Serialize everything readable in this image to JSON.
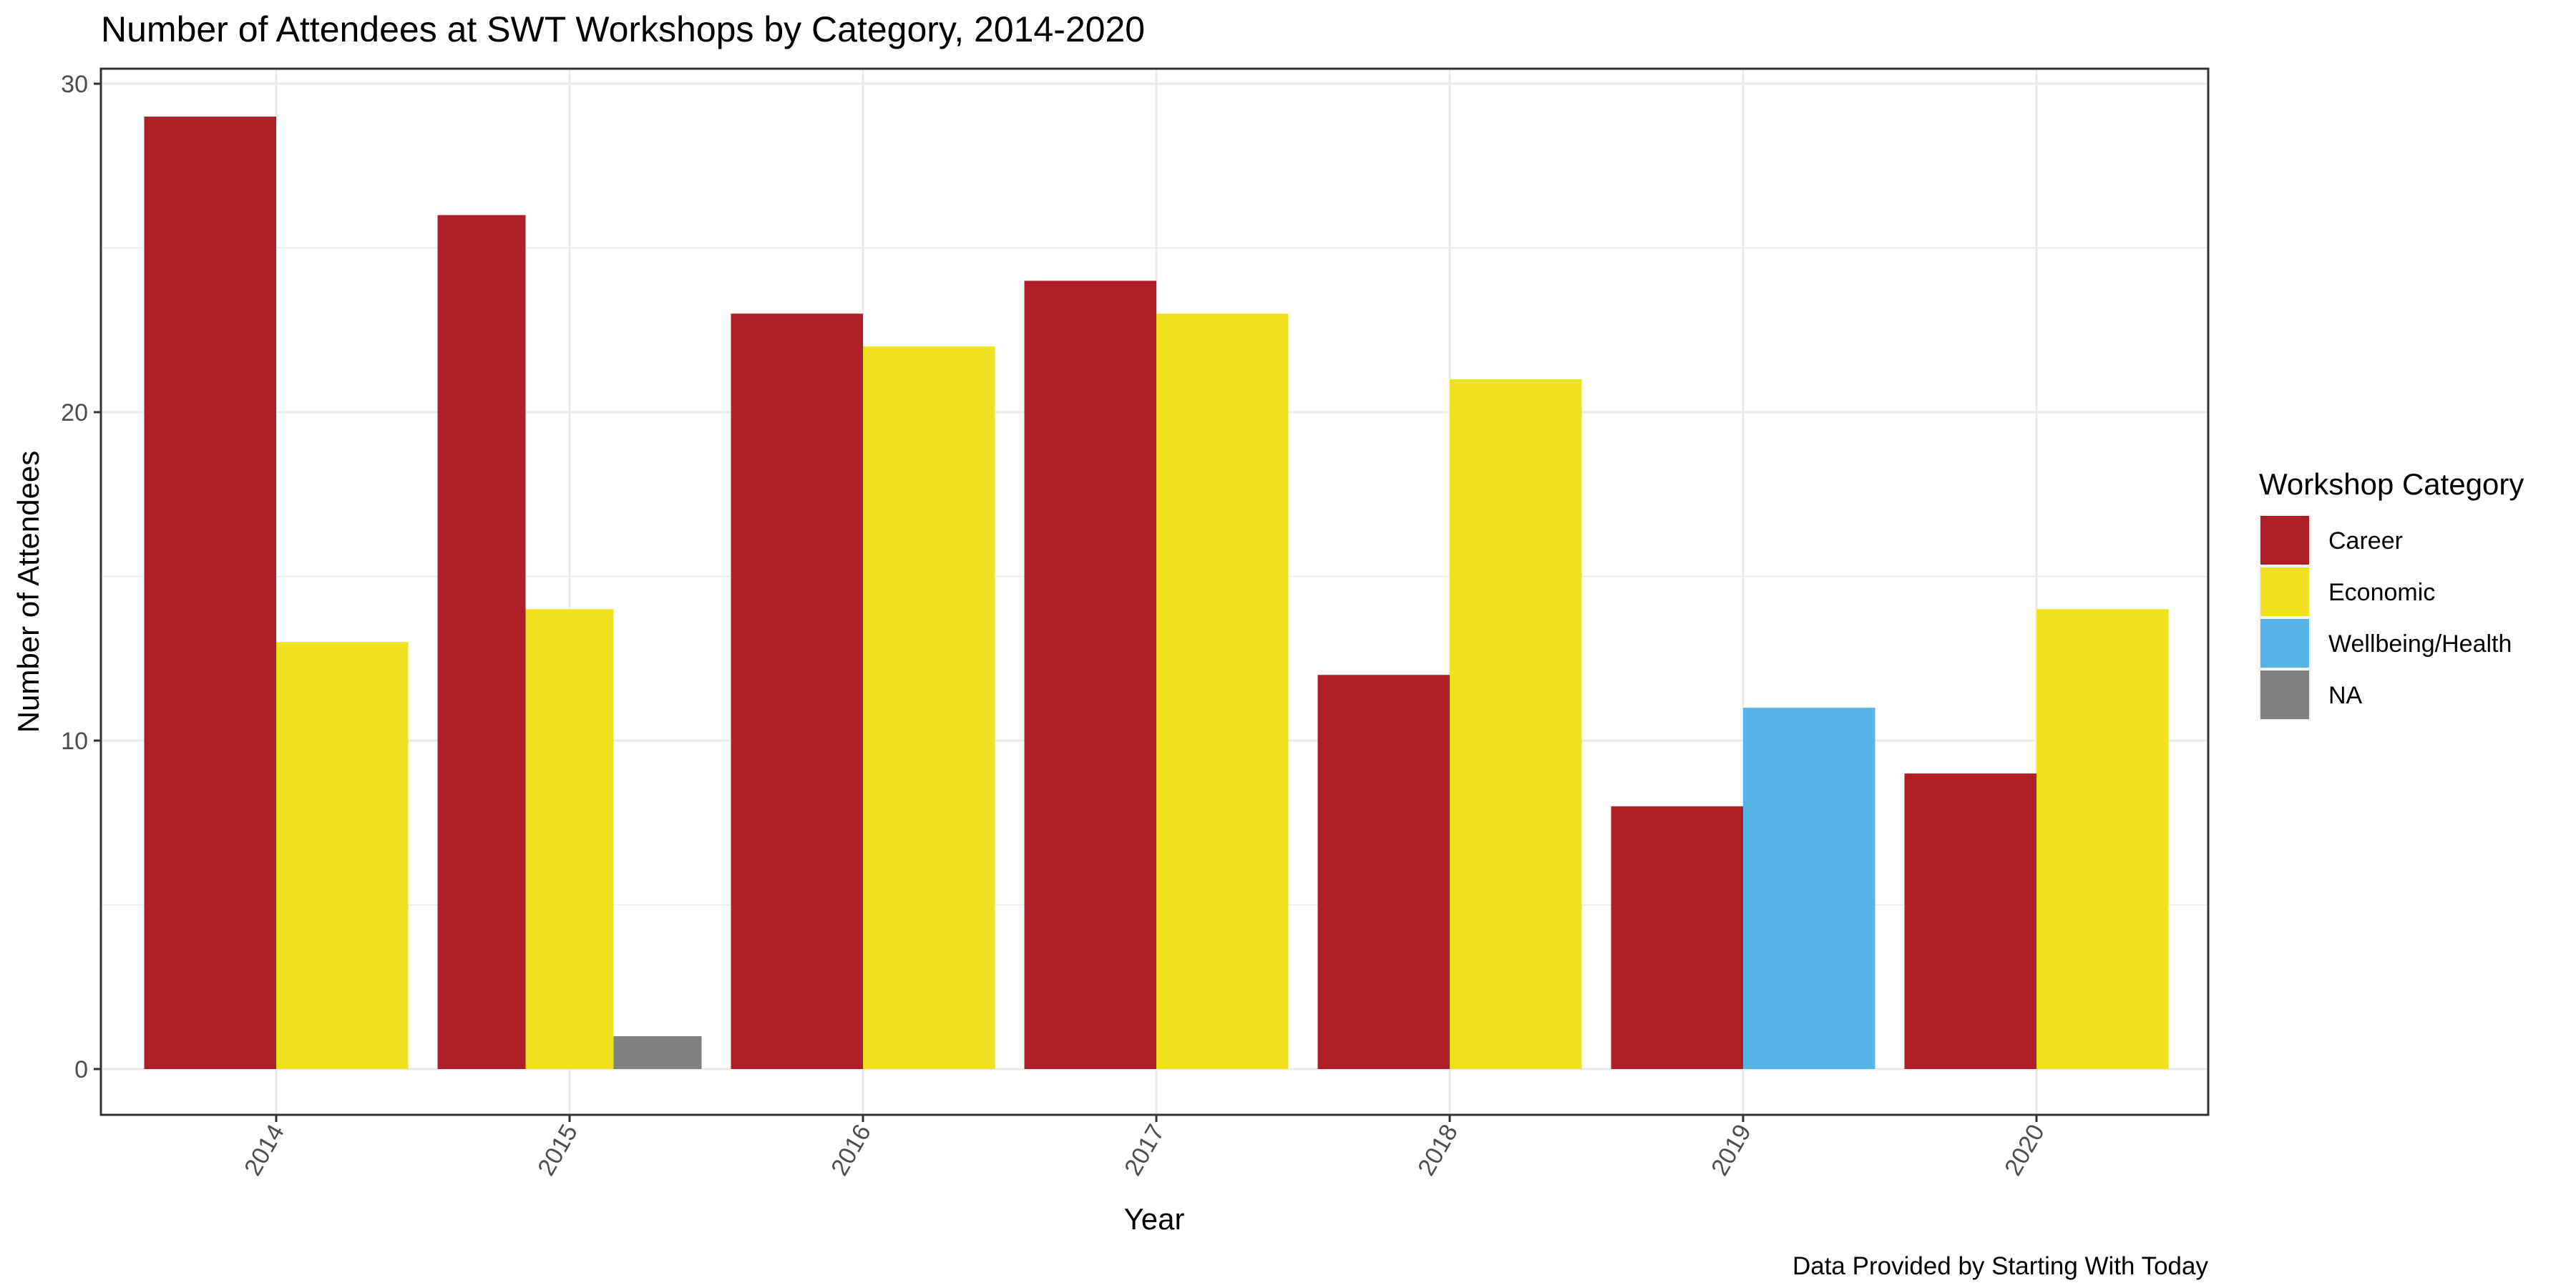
{
  "chart_data": {
    "type": "bar",
    "title": "Number of Attendees at SWT Workshops by Category, 2014-2020",
    "xlabel": "Year",
    "ylabel": "Number of Attendees",
    "caption": "Data Provided by Starting With Today",
    "ylim": [
      0,
      30
    ],
    "y_ticks": [
      "0",
      "10",
      "20",
      "30"
    ],
    "grid": true,
    "legend": {
      "title": "Workshop Category",
      "placement": "right",
      "items": [
        {
          "label": "Career",
          "color": "#AE1F28"
        },
        {
          "label": "Economic",
          "color": "#EFE11F"
        },
        {
          "label": "Wellbeing/Health",
          "color": "#56B4E6"
        },
        {
          "label": "NA",
          "color": "#808080"
        }
      ]
    },
    "groups": [
      {
        "x": "2014",
        "bars": [
          {
            "category": "Career",
            "value": 29
          },
          {
            "category": "Economic",
            "value": 13
          }
        ]
      },
      {
        "x": "2015",
        "bars": [
          {
            "category": "Career",
            "value": 26
          },
          {
            "category": "Economic",
            "value": 14
          },
          {
            "category": "NA",
            "value": 1
          }
        ]
      },
      {
        "x": "2016",
        "bars": [
          {
            "category": "Career",
            "value": 23
          },
          {
            "category": "Economic",
            "value": 22
          }
        ]
      },
      {
        "x": "2017",
        "bars": [
          {
            "category": "Career",
            "value": 24
          },
          {
            "category": "Economic",
            "value": 23
          }
        ]
      },
      {
        "x": "2018",
        "bars": [
          {
            "category": "Career",
            "value": 12
          },
          {
            "category": "Economic",
            "value": 21
          }
        ]
      },
      {
        "x": "2019",
        "bars": [
          {
            "category": "Career",
            "value": 8
          },
          {
            "category": "Wellbeing/Health",
            "value": 11
          }
        ]
      },
      {
        "x": "2020",
        "bars": [
          {
            "category": "Career",
            "value": 9
          },
          {
            "category": "Economic",
            "value": 14
          }
        ]
      }
    ]
  }
}
